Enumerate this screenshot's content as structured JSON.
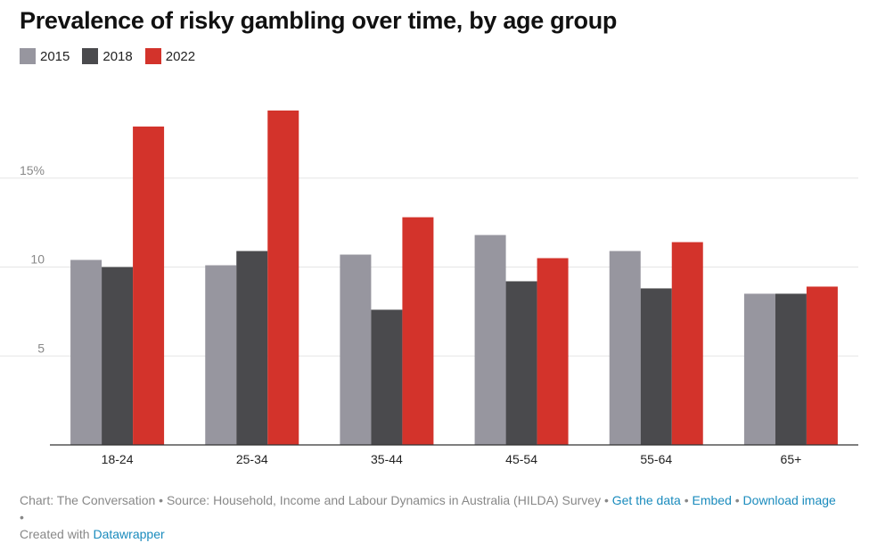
{
  "title": "Prevalence of risky gambling over time, by age group",
  "colors": {
    "2015": "#97969f",
    "2018": "#4a4a4d",
    "2022": "#d3332b",
    "grid": "#e5e5e5",
    "axis": "#333333"
  },
  "legend": [
    {
      "label": "2015",
      "color": "#97969f"
    },
    {
      "label": "2018",
      "color": "#4a4a4d"
    },
    {
      "label": "2022",
      "color": "#d3332b"
    }
  ],
  "chart_data": {
    "type": "bar",
    "categories": [
      "18-24",
      "25-34",
      "35-44",
      "45-54",
      "55-64",
      "65+"
    ],
    "series": [
      {
        "name": "2015",
        "color": "#97969f",
        "values": [
          10.4,
          10.1,
          10.7,
          11.8,
          10.9,
          8.5
        ]
      },
      {
        "name": "2018",
        "color": "#4a4a4d",
        "values": [
          10.0,
          10.9,
          7.6,
          9.2,
          8.8,
          8.5
        ]
      },
      {
        "name": "2022",
        "color": "#d3332b",
        "values": [
          17.9,
          18.8,
          12.8,
          10.5,
          11.4,
          8.9
        ]
      }
    ],
    "yticks": [
      {
        "value": 5,
        "label": "5"
      },
      {
        "value": 10,
        "label": "10"
      },
      {
        "value": 15,
        "label": "15%"
      }
    ],
    "ylim": [
      0,
      20
    ],
    "xlabel": "",
    "ylabel": "",
    "grid": true,
    "legend_position": "top-left"
  },
  "footer": {
    "source_text": "Chart: The Conversation • Source: Household, Income and Labour Dynamics in Australia (HILDA) Survey • ",
    "get_data": "Get the data",
    "sep1": " • ",
    "embed": "Embed",
    "sep2": "  • ",
    "download": "Download image",
    "sep3": " •",
    "created_with": "Created with ",
    "datawrapper": "Datawrapper"
  }
}
